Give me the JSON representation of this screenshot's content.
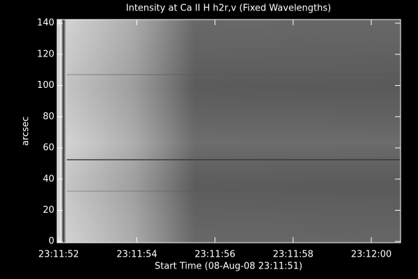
{
  "chart_data": {
    "type": "image",
    "title": "Intensity at Ca II H h2r,v (Fixed Wavelengths)",
    "xlabel": "Start Time (08-Aug-08 23:11:51)",
    "ylabel": "arcsec",
    "xlim": [
      83511.96,
      83520.75
    ],
    "xticks": [
      {
        "value": 83512,
        "label": "23:11:52"
      },
      {
        "value": 83514,
        "label": "23:11:54"
      },
      {
        "value": 83516,
        "label": "23:11:56"
      },
      {
        "value": 83518,
        "label": "23:11:58"
      },
      {
        "value": 83520,
        "label": "23:12:00"
      }
    ],
    "ylim": [
      -0.8,
      142.3
    ],
    "yticks": [
      0,
      20,
      40,
      60,
      80,
      100,
      120,
      140
    ]
  }
}
